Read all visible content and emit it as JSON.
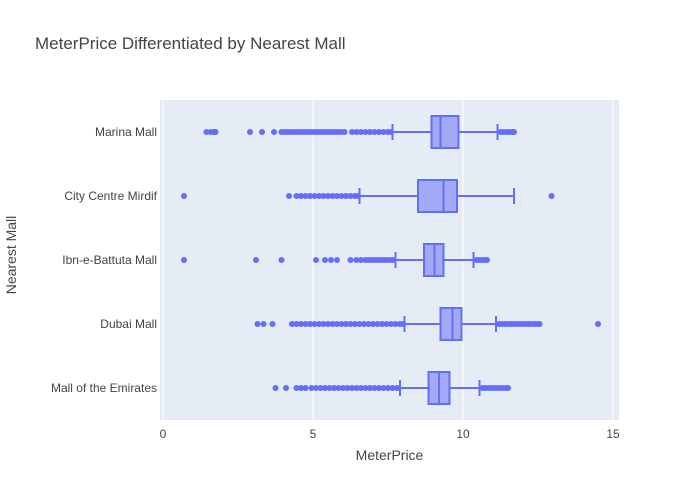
{
  "chart_data": {
    "type": "box",
    "orientation": "horizontal",
    "title": "MeterPrice Differentiated by Nearest Mall",
    "xlabel": "MeterPrice",
    "ylabel": "Nearest Mall",
    "xlim": [
      -0.1,
      15.2
    ],
    "xticks": [
      0,
      5,
      10,
      15
    ],
    "grid": true,
    "legend": "none",
    "colors": {
      "plot_bg": "#e5ecf6",
      "grid": "#ffffff",
      "box_line": "#636efa",
      "box_fill": "#a3a8f7",
      "text": "#444444"
    },
    "categories": [
      "Marina Mall",
      "City Centre Mirdif",
      "Ibn-e-Battuta Mall",
      "Dubai Mall",
      "Mall of the Emirates"
    ],
    "series": [
      {
        "category": "Marina Mall",
        "lower_fence": 7.65,
        "q1": 8.95,
        "median": 9.25,
        "q3": 9.85,
        "upper_fence": 11.15,
        "outliers": [
          1.45,
          1.6,
          1.7,
          1.75,
          2.9,
          3.3,
          3.7,
          3.95,
          4.05,
          4.15,
          4.25,
          4.35,
          4.45,
          4.55,
          4.65,
          4.75,
          4.85,
          4.95,
          5.05,
          5.15,
          5.25,
          5.35,
          5.45,
          5.55,
          5.65,
          5.75,
          5.85,
          5.95,
          6.05,
          6.3,
          6.45,
          6.6,
          6.75,
          6.9,
          7.05,
          7.2,
          7.35,
          7.5,
          7.6,
          11.25,
          11.35,
          11.45,
          11.55,
          11.65,
          11.7
        ]
      },
      {
        "category": "City Centre Mirdif",
        "lower_fence": 6.55,
        "q1": 8.5,
        "median": 9.35,
        "q3": 9.8,
        "upper_fence": 11.7,
        "outliers": [
          0.7,
          4.2,
          4.45,
          4.6,
          4.75,
          4.9,
          5.05,
          5.2,
          5.35,
          5.5,
          5.65,
          5.8,
          5.95,
          6.1,
          6.25,
          6.4,
          6.5,
          12.95
        ]
      },
      {
        "category": "Ibn-e-Battuta Mall",
        "lower_fence": 7.75,
        "q1": 8.7,
        "median": 9.05,
        "q3": 9.35,
        "upper_fence": 10.35,
        "outliers": [
          0.7,
          3.1,
          3.95,
          5.1,
          5.4,
          5.6,
          5.8,
          6.25,
          6.45,
          6.6,
          6.75,
          6.85,
          6.95,
          7.05,
          7.15,
          7.25,
          7.35,
          7.45,
          7.55,
          7.65,
          10.45,
          10.55,
          10.65,
          10.75,
          10.8
        ]
      },
      {
        "category": "Dubai Mall",
        "lower_fence": 8.05,
        "q1": 9.25,
        "median": 9.65,
        "q3": 9.95,
        "upper_fence": 11.1,
        "outliers": [
          3.15,
          3.35,
          3.65,
          4.3,
          4.45,
          4.6,
          4.75,
          4.9,
          5.05,
          5.2,
          5.35,
          5.5,
          5.65,
          5.8,
          5.95,
          6.1,
          6.25,
          6.4,
          6.55,
          6.7,
          6.85,
          7.0,
          7.15,
          7.3,
          7.45,
          7.6,
          7.75,
          7.9,
          8.0,
          11.2,
          11.3,
          11.4,
          11.5,
          11.6,
          11.7,
          11.8,
          11.9,
          12.0,
          12.1,
          12.2,
          12.3,
          12.4,
          12.5,
          12.55,
          14.5
        ]
      },
      {
        "category": "Mall of the Emirates",
        "lower_fence": 7.9,
        "q1": 8.85,
        "median": 9.2,
        "q3": 9.55,
        "upper_fence": 10.55,
        "outliers": [
          3.75,
          4.1,
          4.45,
          4.6,
          4.75,
          4.95,
          5.1,
          5.25,
          5.4,
          5.55,
          5.7,
          5.85,
          6.0,
          6.15,
          6.3,
          6.45,
          6.6,
          6.75,
          6.9,
          7.05,
          7.2,
          7.35,
          7.5,
          7.65,
          7.8,
          10.65,
          10.75,
          10.85,
          10.95,
          11.05,
          11.15,
          11.25,
          11.35,
          11.45,
          11.5
        ]
      }
    ]
  }
}
